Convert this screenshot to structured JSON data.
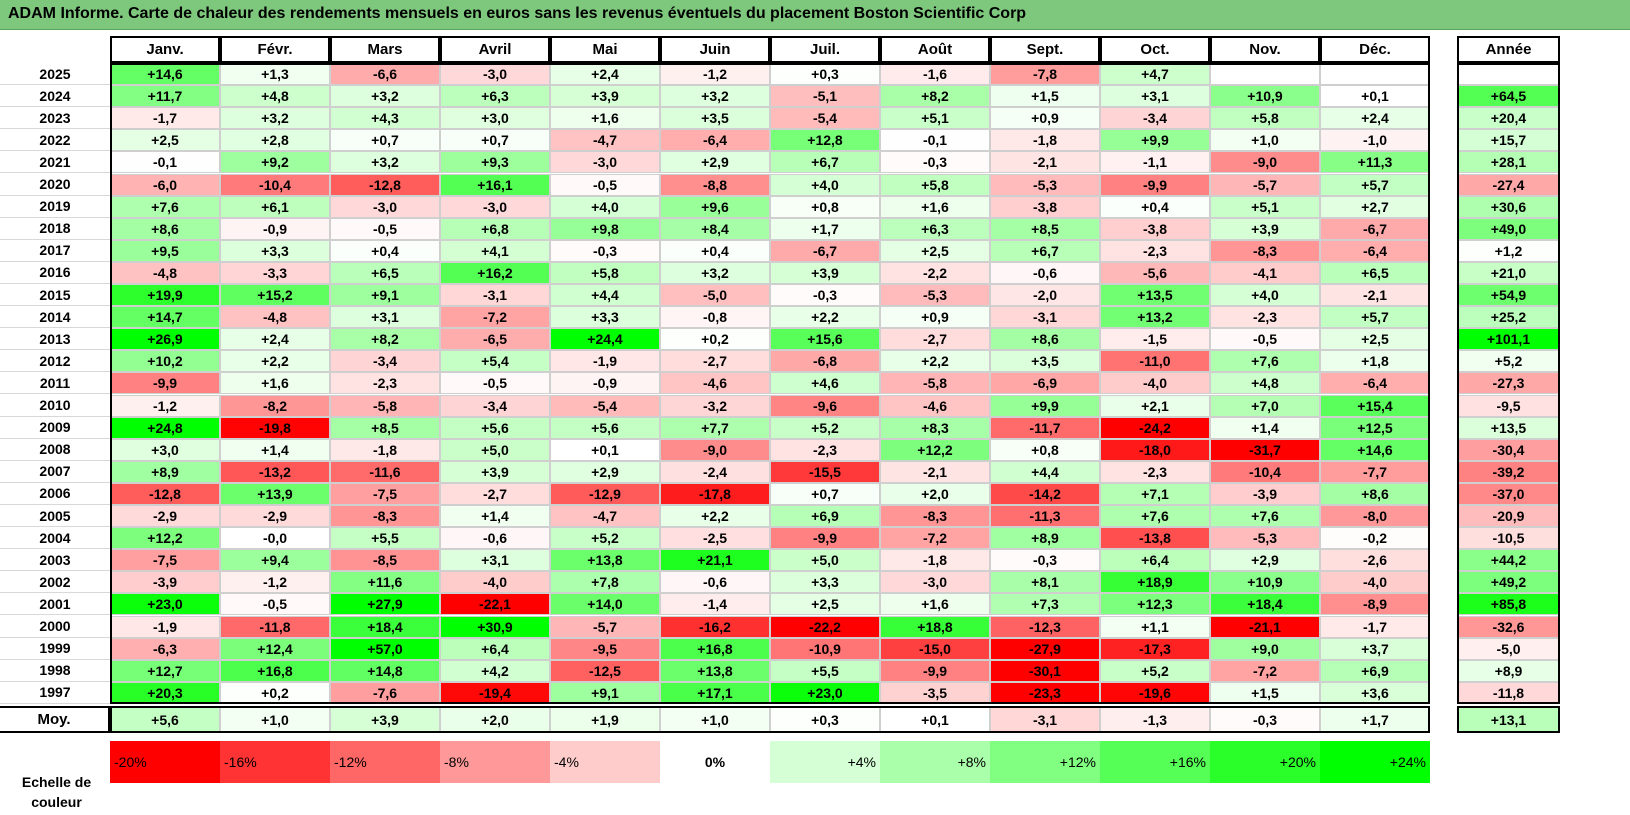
{
  "title": "ADAM Informe. Carte de chaleur des rendements mensuels en euros sans les revenus éventuels du placement Boston Scientific Corp",
  "chart_data": {
    "type": "heatmap",
    "title": "ADAM Informe. Carte de chaleur des rendements mensuels en euros sans les revenus éventuels du placement Boston Scientific Corp",
    "months": [
      "Janv.",
      "Févr.",
      "Mars",
      "Avril",
      "Mai",
      "Juin",
      "Juil.",
      "Août",
      "Sept.",
      "Oct.",
      "Nov.",
      "Déc."
    ],
    "year_header": "Année",
    "rows": [
      {
        "year": "2025",
        "values": [
          "+14,6",
          "+1,3",
          "-6,6",
          "-3,0",
          "+2,4",
          "-1,2",
          "+0,3",
          "-1,6",
          "-7,8",
          "+4,7",
          "",
          ""
        ],
        "total": ""
      },
      {
        "year": "2024",
        "values": [
          "+11,7",
          "+4,8",
          "+3,2",
          "+6,3",
          "+3,9",
          "+3,2",
          "-5,1",
          "+8,2",
          "+1,5",
          "+3,1",
          "+10,9",
          "+0,1"
        ],
        "total": "+64,5"
      },
      {
        "year": "2023",
        "values": [
          "-1,7",
          "+3,2",
          "+4,3",
          "+3,0",
          "+1,6",
          "+3,5",
          "-5,4",
          "+5,1",
          "+0,9",
          "-3,4",
          "+5,8",
          "+2,4"
        ],
        "total": "+20,4"
      },
      {
        "year": "2022",
        "values": [
          "+2,5",
          "+2,8",
          "+0,7",
          "+0,7",
          "-4,7",
          "-6,4",
          "+12,8",
          "-0,1",
          "-1,8",
          "+9,9",
          "+1,0",
          "-1,0"
        ],
        "total": "+15,7"
      },
      {
        "year": "2021",
        "values": [
          "-0,1",
          "+9,2",
          "+3,2",
          "+9,3",
          "-3,0",
          "+2,9",
          "+6,7",
          "-0,3",
          "-2,1",
          "-1,1",
          "-9,0",
          "+11,3"
        ],
        "total": "+28,1"
      },
      {
        "year": "2020",
        "values": [
          "-6,0",
          "-10,4",
          "-12,8",
          "+16,1",
          "-0,5",
          "-8,8",
          "+4,0",
          "+5,8",
          "-5,3",
          "-9,9",
          "-5,7",
          "+5,7"
        ],
        "total": "-27,4"
      },
      {
        "year": "2019",
        "values": [
          "+7,6",
          "+6,1",
          "-3,0",
          "-3,0",
          "+4,0",
          "+9,6",
          "+0,8",
          "+1,6",
          "-3,8",
          "+0,4",
          "+5,1",
          "+2,7"
        ],
        "total": "+30,6"
      },
      {
        "year": "2018",
        "values": [
          "+8,6",
          "-0,9",
          "-0,5",
          "+6,8",
          "+9,8",
          "+8,4",
          "+1,7",
          "+6,3",
          "+8,5",
          "-3,8",
          "+3,9",
          "-6,7"
        ],
        "total": "+49,0"
      },
      {
        "year": "2017",
        "values": [
          "+9,5",
          "+3,3",
          "+0,4",
          "+4,1",
          "-0,3",
          "+0,4",
          "-6,7",
          "+2,5",
          "+6,7",
          "-2,3",
          "-8,3",
          "-6,4"
        ],
        "total": "+1,2"
      },
      {
        "year": "2016",
        "values": [
          "-4,8",
          "-3,3",
          "+6,5",
          "+16,2",
          "+5,8",
          "+3,2",
          "+3,9",
          "-2,2",
          "-0,6",
          "-5,6",
          "-4,1",
          "+6,5"
        ],
        "total": "+21,0"
      },
      {
        "year": "2015",
        "values": [
          "+19,9",
          "+15,2",
          "+9,1",
          "-3,1",
          "+4,4",
          "-5,0",
          "-0,3",
          "-5,3",
          "-2,0",
          "+13,5",
          "+4,0",
          "-2,1"
        ],
        "total": "+54,9"
      },
      {
        "year": "2014",
        "values": [
          "+14,7",
          "-4,8",
          "+3,1",
          "-7,2",
          "+3,3",
          "-0,8",
          "+2,2",
          "+0,9",
          "-3,1",
          "+13,2",
          "-2,3",
          "+5,7"
        ],
        "total": "+25,2"
      },
      {
        "year": "2013",
        "values": [
          "+26,9",
          "+2,4",
          "+8,2",
          "-6,5",
          "+24,4",
          "+0,2",
          "+15,6",
          "-2,7",
          "+8,6",
          "-1,5",
          "-0,5",
          "+2,5"
        ],
        "total": "+101,1"
      },
      {
        "year": "2012",
        "values": [
          "+10,2",
          "+2,2",
          "-3,4",
          "+5,4",
          "-1,9",
          "-2,7",
          "-6,8",
          "+2,2",
          "+3,5",
          "-11,0",
          "+7,6",
          "+1,8"
        ],
        "total": "+5,2"
      },
      {
        "year": "2011",
        "values": [
          "-9,9",
          "+1,6",
          "-2,3",
          "-0,5",
          "-0,9",
          "-4,6",
          "+4,6",
          "-5,8",
          "-6,9",
          "-4,0",
          "+4,8",
          "-6,4"
        ],
        "total": "-27,3"
      },
      {
        "year": "2010",
        "values": [
          "-1,2",
          "-8,2",
          "-5,8",
          "-3,4",
          "-5,4",
          "-3,2",
          "-9,6",
          "-4,6",
          "+9,9",
          "+2,1",
          "+7,0",
          "+15,4"
        ],
        "total": "-9,5"
      },
      {
        "year": "2009",
        "values": [
          "+24,8",
          "-19,8",
          "+8,5",
          "+5,6",
          "+5,6",
          "+7,7",
          "+5,2",
          "+8,3",
          "-11,7",
          "-24,2",
          "+1,4",
          "+12,5"
        ],
        "total": "+13,5"
      },
      {
        "year": "2008",
        "values": [
          "+3,0",
          "+1,4",
          "-1,8",
          "+5,0",
          "+0,1",
          "-9,0",
          "-2,3",
          "+12,2",
          "+0,8",
          "-18,0",
          "-31,7",
          "+14,6"
        ],
        "total": "-30,4"
      },
      {
        "year": "2007",
        "values": [
          "+8,9",
          "-13,2",
          "-11,6",
          "+3,9",
          "+2,9",
          "-2,4",
          "-15,5",
          "-2,1",
          "+4,4",
          "-2,3",
          "-10,4",
          "-7,7"
        ],
        "total": "-39,2"
      },
      {
        "year": "2006",
        "values": [
          "-12,8",
          "+13,9",
          "-7,5",
          "-2,7",
          "-12,9",
          "-17,8",
          "+0,7",
          "+2,0",
          "-14,2",
          "+7,1",
          "-3,9",
          "+8,6"
        ],
        "total": "-37,0"
      },
      {
        "year": "2005",
        "values": [
          "-2,9",
          "-2,9",
          "-8,3",
          "+1,4",
          "-4,7",
          "+2,2",
          "+6,9",
          "-8,3",
          "-11,3",
          "+7,6",
          "+7,6",
          "-8,0"
        ],
        "total": "-20,9"
      },
      {
        "year": "2004",
        "values": [
          "+12,2",
          "-0,0",
          "+5,5",
          "-0,6",
          "+5,2",
          "-2,5",
          "-9,9",
          "-7,2",
          "+8,9",
          "-13,8",
          "-5,3",
          "-0,2"
        ],
        "total": "-10,5"
      },
      {
        "year": "2003",
        "values": [
          "-7,5",
          "+9,4",
          "-8,5",
          "+3,1",
          "+13,8",
          "+21,1",
          "+5,0",
          "-1,8",
          "-0,3",
          "+6,4",
          "+2,9",
          "-2,6"
        ],
        "total": "+44,2"
      },
      {
        "year": "2002",
        "values": [
          "-3,9",
          "-1,2",
          "+11,6",
          "-4,0",
          "+7,8",
          "-0,6",
          "+3,3",
          "-3,0",
          "+8,1",
          "+18,9",
          "+10,9",
          "-4,0"
        ],
        "total": "+49,2"
      },
      {
        "year": "2001",
        "values": [
          "+23,0",
          "-0,5",
          "+27,9",
          "-22,1",
          "+14,0",
          "-1,4",
          "+2,5",
          "+1,6",
          "+7,3",
          "+12,3",
          "+18,4",
          "-8,9"
        ],
        "total": "+85,8"
      },
      {
        "year": "2000",
        "values": [
          "-1,9",
          "-11,8",
          "+18,4",
          "+30,9",
          "-5,7",
          "-16,2",
          "-22,2",
          "+18,8",
          "-12,3",
          "+1,1",
          "-21,1",
          "-1,7"
        ],
        "total": "-32,6"
      },
      {
        "year": "1999",
        "values": [
          "-6,3",
          "+12,4",
          "+57,0",
          "+6,4",
          "-9,5",
          "+16,8",
          "-10,9",
          "-15,0",
          "-27,9",
          "-17,3",
          "+9,0",
          "+3,7"
        ],
        "total": "-5,0"
      },
      {
        "year": "1998",
        "values": [
          "+12,7",
          "+16,8",
          "+14,8",
          "+4,2",
          "-12,5",
          "+13,8",
          "+5,5",
          "-9,9",
          "-30,1",
          "+5,2",
          "-7,2",
          "+6,9"
        ],
        "total": "+8,9"
      },
      {
        "year": "1997",
        "values": [
          "+20,3",
          "+0,2",
          "-7,6",
          "-19,4",
          "+9,1",
          "+17,1",
          "+23,0",
          "-3,5",
          "-23,3",
          "-19,6",
          "+1,5",
          "+3,6"
        ],
        "total": "-11,8"
      }
    ],
    "average": {
      "label": "Moy.",
      "values": [
        "+5,6",
        "+1,0",
        "+3,9",
        "+2,0",
        "+1,9",
        "+1,0",
        "+0,3",
        "+0,1",
        "-3,1",
        "-1,3",
        "-0,3",
        "+1,7"
      ],
      "total": "+13,1"
    },
    "color_scale": {
      "label": "Echelle de couleur",
      "steps": [
        "-20%",
        "-16%",
        "-12%",
        "-8%",
        "-4%",
        "0%",
        "+4%",
        "+8%",
        "+12%",
        "+16%",
        "+20%",
        "+24%"
      ]
    },
    "colors": {
      "negative_max": "#ff0000",
      "neutral": "#ffffff",
      "positive_max": "#00ff00"
    }
  }
}
